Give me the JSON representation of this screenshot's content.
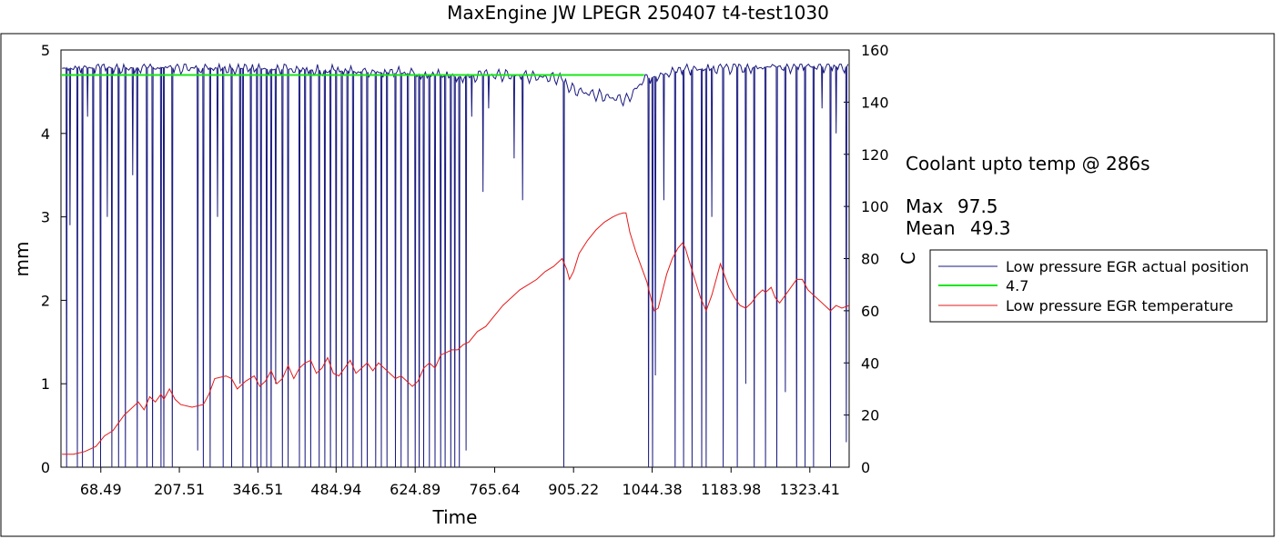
{
  "title": "MaxEngine JW   LPEGR 250407 t4-test1030",
  "annotations": {
    "coolant": "Coolant upto temp @ 286s",
    "max_label": "Max",
    "max_value": "97.5",
    "mean_label": "Mean",
    "mean_value": "49.3"
  },
  "colors": {
    "position": "#1a1a80",
    "reference": "#19e619",
    "temperature": "#e61919",
    "axes": "#000000"
  },
  "chart_data": {
    "type": "line",
    "title": "MaxEngine JW   LPEGR 250407 t4-test1030",
    "xlabel": "Time",
    "ylabel": "mm",
    "y2label": "C",
    "xlim": [
      -2,
      1393
    ],
    "ylim": [
      0,
      5
    ],
    "y2lim": [
      0,
      160
    ],
    "x_ticks": [
      "68.49",
      "207.51",
      "346.51",
      "484.94",
      "624.89",
      "765.64",
      "905.22",
      "1044.38",
      "1183.98",
      "1323.41"
    ],
    "x_tick_values": [
      68.49,
      207.51,
      346.51,
      484.94,
      624.89,
      765.64,
      905.22,
      1044.38,
      1183.98,
      1323.41
    ],
    "y_ticks": [
      "0",
      "1",
      "2",
      "3",
      "4",
      "5"
    ],
    "y2_ticks": [
      "0",
      "20",
      "40",
      "60",
      "80",
      "100",
      "120",
      "140",
      "160"
    ],
    "grid": false,
    "legend_position": "right",
    "legend": [
      "Low pressure EGR actual position",
      "4.7",
      "Low pressure EGR temperature"
    ],
    "series": [
      {
        "name": "Low pressure EGR actual position",
        "axis": "left",
        "style": "oscillating",
        "baseline_points": [
          [
            0,
            4.78
          ],
          [
            150,
            4.79
          ],
          [
            300,
            4.78
          ],
          [
            450,
            4.76
          ],
          [
            600,
            4.72
          ],
          [
            700,
            4.68
          ],
          [
            780,
            4.7
          ],
          [
            880,
            4.66
          ],
          [
            905,
            4.52
          ],
          [
            960,
            4.44
          ],
          [
            1000,
            4.4
          ],
          [
            1030,
            4.65
          ],
          [
            1100,
            4.76
          ],
          [
            1200,
            4.79
          ],
          [
            1300,
            4.8
          ],
          [
            1393,
            4.8
          ]
        ],
        "dropout_events": [
          [
            8,
            0.0
          ],
          [
            14,
            2.9
          ],
          [
            27,
            0.0
          ],
          [
            36,
            0.0
          ],
          [
            45,
            4.2
          ],
          [
            55,
            0.0
          ],
          [
            68,
            0.0
          ],
          [
            80,
            3.0
          ],
          [
            88,
            0.0
          ],
          [
            100,
            0.0
          ],
          [
            112,
            0.0
          ],
          [
            125,
            3.5
          ],
          [
            133,
            0.0
          ],
          [
            150,
            0.0
          ],
          [
            160,
            0.0
          ],
          [
            175,
            0.0
          ],
          [
            180,
            0.0
          ],
          [
            195,
            0.0
          ],
          [
            240,
            0.2
          ],
          [
            250,
            0.0
          ],
          [
            262,
            0.0
          ],
          [
            275,
            3.0
          ],
          [
            285,
            0.0
          ],
          [
            300,
            0.0
          ],
          [
            315,
            1.0
          ],
          [
            320,
            0.0
          ],
          [
            334,
            0.0
          ],
          [
            345,
            0.0
          ],
          [
            352,
            0.0
          ],
          [
            362,
            0.0
          ],
          [
            370,
            0.0
          ],
          [
            378,
            1.0
          ],
          [
            390,
            0.0
          ],
          [
            400,
            0.0
          ],
          [
            420,
            0.0
          ],
          [
            430,
            0.0
          ],
          [
            440,
            0.0
          ],
          [
            455,
            0.0
          ],
          [
            465,
            0.0
          ],
          [
            475,
            0.0
          ],
          [
            485,
            0.0
          ],
          [
            495,
            0.0
          ],
          [
            505,
            0.0
          ],
          [
            515,
            0.0
          ],
          [
            530,
            0.0
          ],
          [
            540,
            0.0
          ],
          [
            555,
            0.0
          ],
          [
            565,
            0.0
          ],
          [
            575,
            0.0
          ],
          [
            590,
            0.0
          ],
          [
            600,
            0.0
          ],
          [
            612,
            0.0
          ],
          [
            625,
            0.0
          ],
          [
            632,
            0.0
          ],
          [
            640,
            0.0
          ],
          [
            650,
            0.0
          ],
          [
            660,
            0.0
          ],
          [
            670,
            0.0
          ],
          [
            678,
            0.0
          ],
          [
            688,
            0.0
          ],
          [
            695,
            0.0
          ],
          [
            703,
            0.0
          ],
          [
            715,
            0.2
          ],
          [
            725,
            4.2
          ],
          [
            745,
            3.3
          ],
          [
            755,
            4.3
          ],
          [
            800,
            3.7
          ],
          [
            815,
            3.2
          ],
          [
            888,
            0.0
          ],
          [
            1038,
            0.0
          ],
          [
            1045,
            0.0
          ],
          [
            1050,
            1.1
          ],
          [
            1065,
            3.2
          ],
          [
            1085,
            0.0
          ],
          [
            1100,
            0.0
          ],
          [
            1115,
            0.0
          ],
          [
            1132,
            0.0
          ],
          [
            1140,
            0.0
          ],
          [
            1150,
            3.0
          ],
          [
            1170,
            0.0
          ],
          [
            1195,
            0.0
          ],
          [
            1210,
            1.0
          ],
          [
            1225,
            0.0
          ],
          [
            1245,
            0.0
          ],
          [
            1265,
            0.0
          ],
          [
            1280,
            0.9
          ],
          [
            1300,
            0.0
          ],
          [
            1315,
            0.0
          ],
          [
            1330,
            0.0
          ],
          [
            1345,
            4.3
          ],
          [
            1360,
            0.0
          ],
          [
            1370,
            4.0
          ],
          [
            1388,
            0.3
          ]
        ]
      },
      {
        "name": "4.7",
        "axis": "left",
        "points": [
          [
            -2,
            4.7
          ],
          [
            1030,
            4.7
          ]
        ]
      },
      {
        "name": "Low pressure EGR temperature",
        "axis": "right",
        "points": [
          [
            0,
            5
          ],
          [
            20,
            5
          ],
          [
            40,
            6
          ],
          [
            60,
            8
          ],
          [
            75,
            12
          ],
          [
            90,
            14
          ],
          [
            100,
            17
          ],
          [
            110,
            20
          ],
          [
            120,
            22
          ],
          [
            135,
            25
          ],
          [
            145,
            22
          ],
          [
            155,
            27
          ],
          [
            165,
            25
          ],
          [
            175,
            28
          ],
          [
            180,
            26
          ],
          [
            190,
            30
          ],
          [
            200,
            26
          ],
          [
            210,
            24
          ],
          [
            230,
            23
          ],
          [
            250,
            24
          ],
          [
            260,
            28
          ],
          [
            270,
            34
          ],
          [
            290,
            35
          ],
          [
            300,
            34
          ],
          [
            310,
            30
          ],
          [
            325,
            33
          ],
          [
            340,
            35
          ],
          [
            350,
            31
          ],
          [
            360,
            33
          ],
          [
            370,
            37
          ],
          [
            380,
            32
          ],
          [
            390,
            34
          ],
          [
            400,
            39
          ],
          [
            410,
            34
          ],
          [
            420,
            38
          ],
          [
            430,
            40
          ],
          [
            440,
            41
          ],
          [
            450,
            36
          ],
          [
            460,
            38
          ],
          [
            470,
            42
          ],
          [
            480,
            36
          ],
          [
            490,
            35
          ],
          [
            500,
            38
          ],
          [
            510,
            41
          ],
          [
            520,
            36
          ],
          [
            530,
            38
          ],
          [
            540,
            40
          ],
          [
            550,
            37
          ],
          [
            560,
            40
          ],
          [
            570,
            38
          ],
          [
            580,
            36
          ],
          [
            590,
            34
          ],
          [
            600,
            35
          ],
          [
            610,
            33
          ],
          [
            620,
            31
          ],
          [
            630,
            33
          ],
          [
            640,
            38
          ],
          [
            650,
            40
          ],
          [
            660,
            38
          ],
          [
            670,
            43
          ],
          [
            680,
            44
          ],
          [
            690,
            45
          ],
          [
            700,
            45
          ],
          [
            710,
            47
          ],
          [
            720,
            48
          ],
          [
            735,
            52
          ],
          [
            750,
            54
          ],
          [
            765,
            58
          ],
          [
            780,
            62
          ],
          [
            795,
            65
          ],
          [
            810,
            68
          ],
          [
            825,
            70
          ],
          [
            840,
            72
          ],
          [
            855,
            75
          ],
          [
            870,
            77
          ],
          [
            885,
            80
          ],
          [
            893,
            76
          ],
          [
            898,
            72
          ],
          [
            905,
            75
          ],
          [
            915,
            82
          ],
          [
            930,
            87
          ],
          [
            945,
            91
          ],
          [
            960,
            94
          ],
          [
            975,
            96
          ],
          [
            985,
            97
          ],
          [
            993,
            97.5
          ],
          [
            998,
            97.5
          ],
          [
            1005,
            90
          ],
          [
            1015,
            83
          ],
          [
            1025,
            77
          ],
          [
            1035,
            71
          ],
          [
            1042,
            65
          ],
          [
            1048,
            60
          ],
          [
            1055,
            61
          ],
          [
            1062,
            67
          ],
          [
            1070,
            74
          ],
          [
            1080,
            80
          ],
          [
            1090,
            84
          ],
          [
            1098,
            86
          ],
          [
            1103,
            84
          ],
          [
            1110,
            79
          ],
          [
            1120,
            72
          ],
          [
            1130,
            65
          ],
          [
            1140,
            60
          ],
          [
            1150,
            66
          ],
          [
            1160,
            74
          ],
          [
            1165,
            78
          ],
          [
            1170,
            75
          ],
          [
            1180,
            69
          ],
          [
            1190,
            65
          ],
          [
            1200,
            62
          ],
          [
            1210,
            61
          ],
          [
            1220,
            63
          ],
          [
            1230,
            66
          ],
          [
            1240,
            68
          ],
          [
            1245,
            67
          ],
          [
            1255,
            69
          ],
          [
            1262,
            65
          ],
          [
            1270,
            63
          ],
          [
            1280,
            66
          ],
          [
            1290,
            69
          ],
          [
            1300,
            72
          ],
          [
            1310,
            72
          ],
          [
            1320,
            68
          ],
          [
            1330,
            66
          ],
          [
            1340,
            64
          ],
          [
            1350,
            62
          ],
          [
            1360,
            60
          ],
          [
            1370,
            62
          ],
          [
            1380,
            61
          ],
          [
            1393,
            62
          ]
        ]
      }
    ]
  }
}
